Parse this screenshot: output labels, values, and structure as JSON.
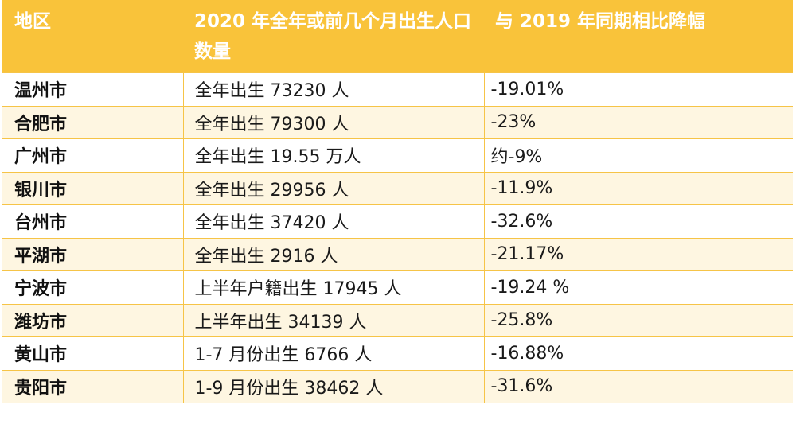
{
  "header": {
    "region": "地区",
    "births": "2020 年全年或前几个月出生人口数量",
    "change": "与 2019 年同期相比降幅"
  },
  "rows": [
    {
      "region": "温州市",
      "births": "全年出生 73230 人",
      "change": "-19.01%"
    },
    {
      "region": "合肥市",
      "births": "全年出生 79300 人",
      "change": "-23%"
    },
    {
      "region": "广州市",
      "births": "全年出生 19.55 万人",
      "change": "约-9%"
    },
    {
      "region": "银川市",
      "births": "全年出生 29956 人",
      "change": "-11.9%"
    },
    {
      "region": "台州市",
      "births": "全年出生 37420 人",
      "change": "-32.6%"
    },
    {
      "region": "平湖市",
      "births": "全年出生 2916 人",
      "change": "-21.17%"
    },
    {
      "region": "宁波市",
      "births": "上半年户籍出生 17945 人",
      "change": "-19.24 %"
    },
    {
      "region": "潍坊市",
      "births": "上半年出生 34139 人",
      "change": "-25.8%"
    },
    {
      "region": "黄山市",
      "births": "1-7 月份出生 6766 人",
      "change": "-16.88%"
    },
    {
      "region": "贵阳市",
      "births": "1-9 月份出生 38462 人",
      "change": "-31.6%"
    }
  ],
  "colors": {
    "header_bg": "#f9c33a",
    "header_text": "#ffffff",
    "stripe_bg": "#fef6e1",
    "border": "#f6c447"
  }
}
